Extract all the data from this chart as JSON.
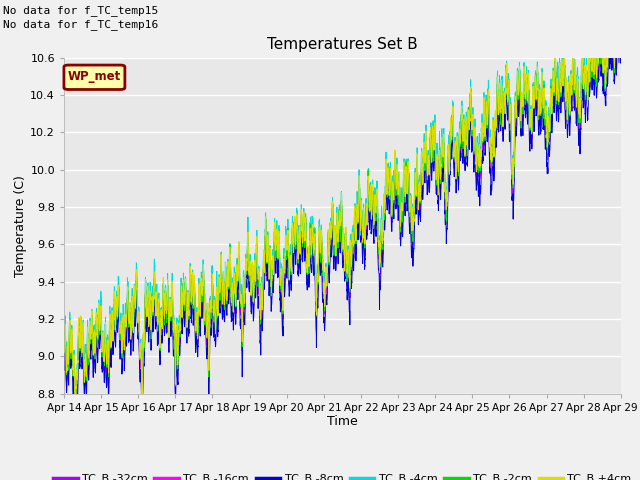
{
  "title": "Temperatures Set B",
  "xlabel": "Time",
  "ylabel": "Temperature (C)",
  "ylim": [
    8.8,
    10.6
  ],
  "fig_facecolor": "#f0f0f0",
  "plot_bg_color": "#e8e8e8",
  "text_no_data": [
    "No data for f_TC_temp15",
    "No data for f_TC_temp16"
  ],
  "wp_met_label": "WP_met",
  "wp_met_color": "#880000",
  "wp_met_bg": "#ffffaa",
  "legend_entries": [
    "TC_B -32cm",
    "TC_B -16cm",
    "TC_B -8cm",
    "TC_B -4cm",
    "TC_B -2cm",
    "TC_B +4cm"
  ],
  "line_colors": [
    "#aa00ff",
    "#ff00ff",
    "#0000dd",
    "#00dddd",
    "#00dd00",
    "#dddd00"
  ],
  "x_tick_labels": [
    "Apr 14",
    "Apr 15",
    "Apr 16",
    "Apr 17",
    "Apr 18",
    "Apr 19",
    "Apr 20",
    "Apr 21",
    "Apr 22",
    "Apr 23",
    "Apr 24",
    "Apr 25",
    "Apr 26",
    "Apr 27",
    "Apr 28",
    "Apr 29"
  ],
  "yticks": [
    8.8,
    9.0,
    9.2,
    9.4,
    9.6,
    9.8,
    10.0,
    10.2,
    10.4,
    10.6
  ],
  "n_points": 4000,
  "seed": 42
}
